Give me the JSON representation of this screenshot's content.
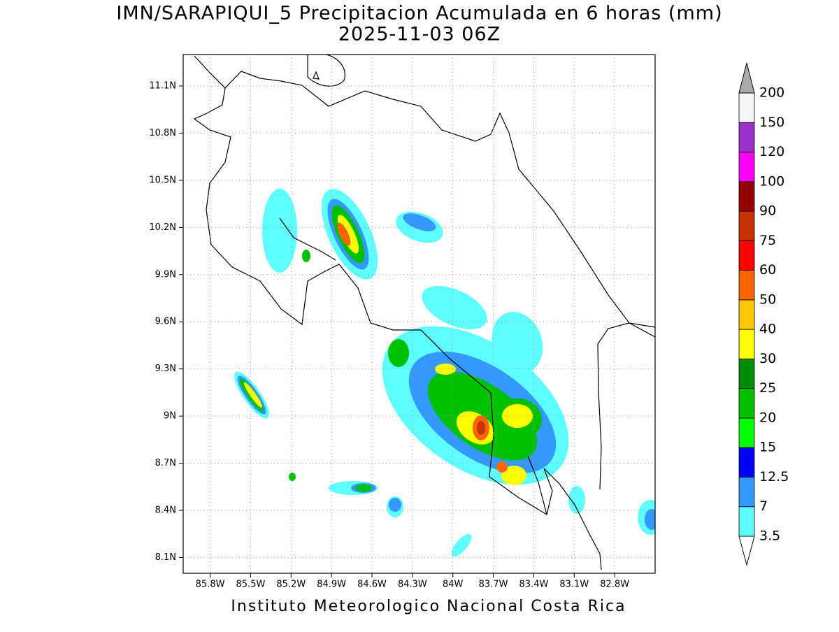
{
  "title": "IMN/SARAPIQUI_5 Precipitacion Acumulada en 6 horas (mm)",
  "subtitle": "2025-11-03 06Z",
  "map": {
    "xlim": [
      -86.0,
      -82.5
    ],
    "ylim": [
      8.0,
      11.3
    ],
    "xticks": [
      {
        "value": -85.8,
        "label": "85.8W"
      },
      {
        "value": -85.5,
        "label": "85.5W"
      },
      {
        "value": -85.2,
        "label": "85.2W"
      },
      {
        "value": -84.9,
        "label": "84.9W"
      },
      {
        "value": -84.6,
        "label": "84.6W"
      },
      {
        "value": -84.3,
        "label": "84.3W"
      },
      {
        "value": -84.0,
        "label": "84W"
      },
      {
        "value": -83.7,
        "label": "83.7W"
      },
      {
        "value": -83.4,
        "label": "83.4W"
      },
      {
        "value": -83.1,
        "label": "83.1W"
      },
      {
        "value": -82.8,
        "label": "82.8W"
      }
    ],
    "yticks": [
      {
        "value": 8.1,
        "label": "8.1N"
      },
      {
        "value": 8.4,
        "label": "8.4N"
      },
      {
        "value": 8.7,
        "label": "8.7N"
      },
      {
        "value": 9.0,
        "label": "9N"
      },
      {
        "value": 9.3,
        "label": "9.3N"
      },
      {
        "value": 9.6,
        "label": "9.6N"
      },
      {
        "value": 9.9,
        "label": "9.9N"
      },
      {
        "value": 10.2,
        "label": "10.2N"
      },
      {
        "value": 10.5,
        "label": "10.5N"
      },
      {
        "value": 10.8,
        "label": "10.8N"
      },
      {
        "value": 11.1,
        "label": "11.1N"
      }
    ],
    "grid": true
  },
  "colorbar": {
    "levels": [
      3.5,
      7,
      12.5,
      15,
      20,
      25,
      30,
      40,
      50,
      60,
      75,
      90,
      100,
      120,
      150,
      200
    ],
    "colors": [
      "#ffffff",
      "#5fffff",
      "#3399ff",
      "#0000ff",
      "#00ff00",
      "#00c000",
      "#008c00",
      "#ffff00",
      "#ffc800",
      "#ff6400",
      "#ff0000",
      "#c83200",
      "#960000",
      "#ff00ff",
      "#9932cc",
      "#f5f5f5",
      "#aaaaaa"
    ]
  },
  "footer": "Instituto Meteorologico Nacional Costa Rica"
}
